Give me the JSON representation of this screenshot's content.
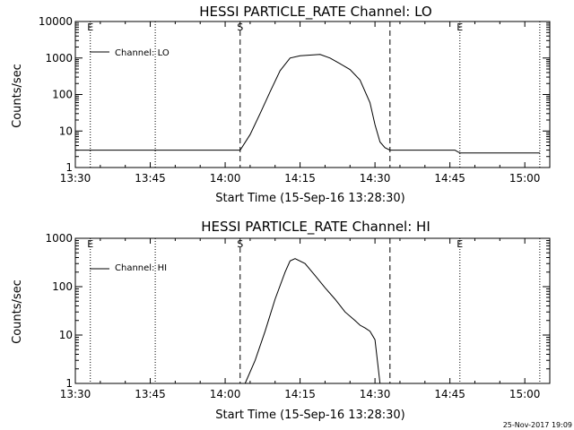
{
  "chart_data": [
    {
      "type": "line",
      "title": "HESSI PARTICLE_RATE Channel: LO",
      "xlabel": "Start Time (15-Sep-16 13:28:30)",
      "ylabel": "Counts/sec",
      "y_scale": "log",
      "xlim": [
        "13:30",
        "15:05"
      ],
      "ylim": [
        1,
        10000
      ],
      "x_tick_labels": [
        "13:30",
        "13:45",
        "14:00",
        "14:15",
        "14:30",
        "14:45",
        "15:00"
      ],
      "y_tick_labels": [
        "1",
        "10",
        "100",
        "1000",
        "10000"
      ],
      "legend": {
        "position": "top-left",
        "entries": [
          "Channel: LO"
        ]
      },
      "markers": [
        {
          "label": "E",
          "time": "13:33",
          "style": "dotted"
        },
        {
          "label": "",
          "time": "13:46",
          "style": "dotted"
        },
        {
          "label": "S",
          "time": "14:03",
          "style": "dashed"
        },
        {
          "label": "",
          "time": "14:33",
          "style": "dashed"
        },
        {
          "label": "E",
          "time": "14:47",
          "style": "dotted"
        },
        {
          "label": "",
          "time": "15:03",
          "style": "dotted"
        }
      ],
      "series": [
        {
          "name": "Channel: LO",
          "x": [
            "13:30",
            "13:36",
            "13:42",
            "13:48",
            "13:54",
            "14:00",
            "14:03",
            "14:05",
            "14:07",
            "14:09",
            "14:11",
            "14:13",
            "14:15",
            "14:17",
            "14:19",
            "14:21",
            "14:23",
            "14:25",
            "14:27",
            "14:29",
            "14:30",
            "14:31",
            "14:32",
            "14:33",
            "14:36",
            "14:39",
            "14:42",
            "14:45",
            "14:46",
            "14:47",
            "14:50",
            "14:55",
            "15:00",
            "15:03"
          ],
          "y": [
            3,
            3,
            3,
            3,
            3,
            3,
            3,
            8,
            30,
            120,
            450,
            1000,
            1150,
            1200,
            1250,
            1000,
            700,
            480,
            250,
            60,
            15,
            5,
            3.5,
            3,
            3,
            3,
            3,
            3,
            3,
            2.5,
            2.5,
            2.5,
            2.5,
            2.5
          ]
        }
      ]
    },
    {
      "type": "line",
      "title": "HESSI PARTICLE_RATE Channel: HI",
      "xlabel": "Start Time (15-Sep-16 13:28:30)",
      "ylabel": "Counts/sec",
      "y_scale": "log",
      "xlim": [
        "13:30",
        "15:05"
      ],
      "ylim": [
        1,
        1000
      ],
      "x_tick_labels": [
        "13:30",
        "13:45",
        "14:00",
        "14:15",
        "14:30",
        "14:45",
        "15:00"
      ],
      "y_tick_labels": [
        "1",
        "10",
        "100",
        "1000"
      ],
      "legend": {
        "position": "top-left",
        "entries": [
          "Channel: HI"
        ]
      },
      "markers": [
        {
          "label": "E",
          "time": "13:33",
          "style": "dotted"
        },
        {
          "label": "",
          "time": "13:46",
          "style": "dotted"
        },
        {
          "label": "S",
          "time": "14:03",
          "style": "dashed"
        },
        {
          "label": "",
          "time": "14:33",
          "style": "dashed"
        },
        {
          "label": "E",
          "time": "14:47",
          "style": "dotted"
        },
        {
          "label": "",
          "time": "15:03",
          "style": "dotted"
        }
      ],
      "series": [
        {
          "name": "Channel: HI",
          "x": [
            "14:04",
            "14:06",
            "14:08",
            "14:10",
            "14:12",
            "14:13",
            "14:14",
            "14:16",
            "14:18",
            "14:20",
            "14:22",
            "14:24",
            "14:26",
            "14:27",
            "14:28",
            "14:29",
            "14:30",
            "14:31"
          ],
          "y": [
            1,
            3,
            12,
            55,
            200,
            340,
            380,
            300,
            170,
            95,
            55,
            30,
            20,
            16,
            14,
            12,
            8,
            1
          ]
        }
      ]
    }
  ],
  "footer_timestamp": "25-Nov-2017 19:09"
}
